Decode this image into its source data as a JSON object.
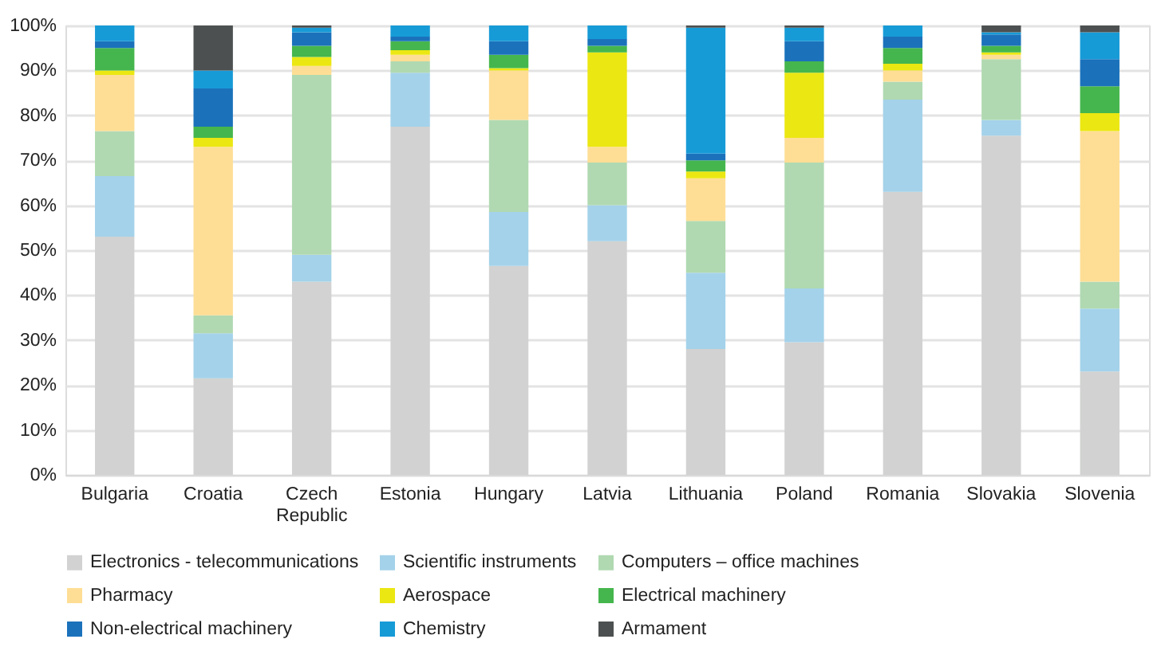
{
  "chart_data": {
    "type": "bar",
    "stacked": true,
    "categories": [
      "Bulgaria",
      "Croatia",
      "Czech Republic",
      "Estonia",
      "Hungary",
      "Latvia",
      "Lithuania",
      "Poland",
      "Romania",
      "Slovakia",
      "Slovenia"
    ],
    "series": [
      {
        "name": "Electronics - telecommunications",
        "color": "#d1d2d1",
        "values": [
          53,
          21.5,
          43,
          77.5,
          46.5,
          52,
          28,
          29.5,
          63,
          75.5,
          23
        ]
      },
      {
        "name": "Scientific instruments",
        "color": "#a4d2ea",
        "values": [
          13.5,
          10,
          6,
          12,
          12,
          8,
          17,
          12,
          20.5,
          3.5,
          14
        ]
      },
      {
        "name": "Computers – office machines",
        "color": "#b0d9b1",
        "values": [
          10,
          4,
          40,
          2.5,
          20.5,
          9.5,
          11.5,
          28,
          4,
          13.5,
          6
        ]
      },
      {
        "name": "Pharmacy",
        "color": "#fede95",
        "values": [
          12.5,
          37.5,
          2,
          1.5,
          11,
          3.5,
          9.5,
          5.5,
          2.5,
          1,
          33.5
        ]
      },
      {
        "name": "Aerospace",
        "color": "#ebe712",
        "values": [
          1,
          2,
          2,
          1,
          0.5,
          21,
          1.5,
          14.5,
          1.5,
          0.5,
          4
        ]
      },
      {
        "name": "Electrical machinery",
        "color": "#45b64d",
        "values": [
          5,
          2.5,
          2.5,
          2,
          3,
          1.5,
          2.5,
          2.5,
          3.5,
          1.5,
          6
        ]
      },
      {
        "name": "Non-electrical machinery",
        "color": "#1b72bb",
        "values": [
          1.5,
          8.5,
          3,
          1,
          3,
          1.5,
          1.5,
          4.5,
          2.5,
          2.5,
          6
        ]
      },
      {
        "name": "Chemistry",
        "color": "#179bd7",
        "values": [
          3.5,
          4,
          1,
          2.5,
          3.5,
          3,
          28,
          3,
          2.5,
          0.5,
          6
        ]
      },
      {
        "name": "Armament",
        "color": "#4d5050",
        "values": [
          0,
          10,
          0.5,
          0,
          0,
          0,
          0.5,
          0.5,
          0,
          1.5,
          1.5
        ]
      }
    ],
    "ylim": [
      0,
      100
    ],
    "yticks": [
      {
        "value": 0,
        "label": "0%"
      },
      {
        "value": 10,
        "label": "10%"
      },
      {
        "value": 20,
        "label": "20%"
      },
      {
        "value": 30,
        "label": "30%"
      },
      {
        "value": 40,
        "label": "40%"
      },
      {
        "value": 50,
        "label": "50%"
      },
      {
        "value": 60,
        "label": "60%"
      },
      {
        "value": 70,
        "label": "70%"
      },
      {
        "value": 80,
        "label": "80%"
      },
      {
        "value": 90,
        "label": "90%"
      },
      {
        "value": 100,
        "label": "100%"
      }
    ],
    "grid": "y",
    "legend": "bottom"
  }
}
